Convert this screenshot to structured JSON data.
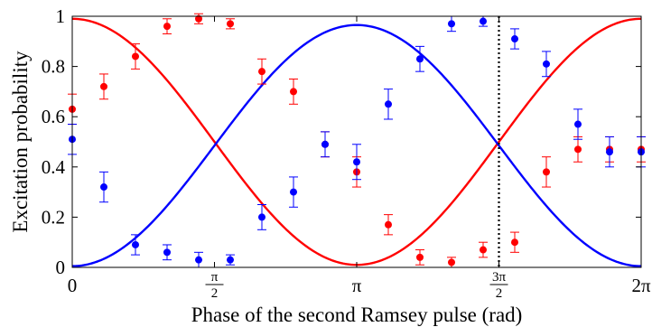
{
  "chart_data": {
    "type": "scatter",
    "title": "",
    "xlabel": "Phase of the second Ramsey pulse (rad)",
    "ylabel": "Excitation probability",
    "xlim": [
      0,
      6.2832
    ],
    "ylim": [
      0,
      1
    ],
    "x_ticks": [
      {
        "value": 0,
        "label": "0"
      },
      {
        "value": 1.5708,
        "num": "π",
        "den": "2"
      },
      {
        "value": 3.1416,
        "label": "π"
      },
      {
        "value": 4.7124,
        "num": "3π",
        "den": "2"
      },
      {
        "value": 6.2832,
        "label": "2π"
      }
    ],
    "y_ticks": [
      {
        "value": 0,
        "label": "0"
      },
      {
        "value": 0.2,
        "label": "0.2"
      },
      {
        "value": 0.4,
        "label": "0.4"
      },
      {
        "value": 0.6,
        "label": "0.6"
      },
      {
        "value": 0.8,
        "label": "0.8"
      },
      {
        "value": 1,
        "label": "1"
      }
    ],
    "grid": false,
    "series": [
      {
        "color": "#ff0000",
        "x": [
          0,
          0.3491,
          0.6981,
          1.0472,
          1.3963,
          1.7453,
          2.0944,
          2.4435,
          2.7925,
          3.1416,
          3.4907,
          3.8397,
          4.1888,
          4.5379,
          4.8869,
          5.236,
          5.5851,
          5.9341,
          6.2832
        ],
        "y": [
          0.63,
          0.72,
          0.84,
          0.96,
          0.99,
          0.97,
          0.78,
          0.7,
          0.49,
          0.38,
          0.17,
          0.04,
          0.02,
          0.07,
          0.1,
          0.38,
          0.47,
          0.47,
          0.47
        ],
        "yerr": [
          0.06,
          0.05,
          0.05,
          0.03,
          0.02,
          0.02,
          0.05,
          0.05,
          0.05,
          0.06,
          0.04,
          0.03,
          0.02,
          0.03,
          0.04,
          0.06,
          0.05,
          0.05,
          0.05
        ],
        "fit": {
          "offset": 0.5,
          "amplitude": 0.49,
          "phase": 1.5708
        }
      },
      {
        "color": "#0000ff",
        "x": [
          0,
          0.3491,
          0.6981,
          1.0472,
          1.3963,
          1.7453,
          2.0944,
          2.4435,
          2.7925,
          3.1416,
          3.4907,
          3.8397,
          4.1888,
          4.5379,
          4.8869,
          5.236,
          5.5851,
          5.9341,
          6.2832
        ],
        "y": [
          0.51,
          0.32,
          0.09,
          0.06,
          0.03,
          0.03,
          0.2,
          0.3,
          0.49,
          0.42,
          0.65,
          0.83,
          0.97,
          0.98,
          0.91,
          0.81,
          0.57,
          0.46,
          0.46
        ],
        "yerr": [
          0.06,
          0.06,
          0.04,
          0.03,
          0.03,
          0.02,
          0.05,
          0.06,
          0.05,
          0.07,
          0.06,
          0.05,
          0.03,
          0.02,
          0.04,
          0.05,
          0.06,
          0.06,
          0.06
        ],
        "fit": {
          "offset": 0.485,
          "amplitude": 0.48,
          "phase": 4.7124
        }
      }
    ],
    "vertical_marker": {
      "x": 4.7124,
      "style": "dotted",
      "color": "#000000"
    }
  }
}
